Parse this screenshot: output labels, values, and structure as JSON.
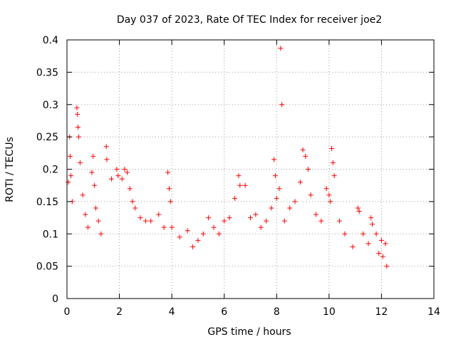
{
  "chart_data": {
    "type": "scatter",
    "title": "Day 037 of 2023, Rate Of TEC Index for receiver joe2",
    "xlabel": "GPS time / hours",
    "ylabel": "ROTI / TECUs",
    "xlim": [
      0,
      14
    ],
    "ylim": [
      0,
      0.4
    ],
    "x_ticks": [
      0,
      2,
      4,
      6,
      8,
      10,
      12,
      14
    ],
    "y_ticks": [
      0,
      0.05,
      0.1,
      0.15,
      0.2,
      0.25,
      0.3,
      0.35,
      0.4
    ],
    "grid": true,
    "marker": "+",
    "color": "#ff0000",
    "series": [
      {
        "name": "ROTI",
        "points": [
          [
            0.05,
            0.18
          ],
          [
            0.1,
            0.25
          ],
          [
            0.12,
            0.22
          ],
          [
            0.15,
            0.19
          ],
          [
            0.2,
            0.15
          ],
          [
            0.38,
            0.295
          ],
          [
            0.4,
            0.285
          ],
          [
            0.42,
            0.265
          ],
          [
            0.45,
            0.25
          ],
          [
            0.5,
            0.21
          ],
          [
            0.6,
            0.16
          ],
          [
            0.7,
            0.13
          ],
          [
            0.8,
            0.11
          ],
          [
            0.95,
            0.195
          ],
          [
            1.0,
            0.22
          ],
          [
            1.05,
            0.175
          ],
          [
            1.1,
            0.14
          ],
          [
            1.2,
            0.12
          ],
          [
            1.3,
            0.1
          ],
          [
            1.5,
            0.235
          ],
          [
            1.52,
            0.215
          ],
          [
            1.7,
            0.185
          ],
          [
            1.9,
            0.2
          ],
          [
            1.95,
            0.19
          ],
          [
            2.1,
            0.185
          ],
          [
            2.2,
            0.2
          ],
          [
            2.3,
            0.195
          ],
          [
            2.4,
            0.17
          ],
          [
            2.5,
            0.15
          ],
          [
            2.6,
            0.14
          ],
          [
            2.8,
            0.125
          ],
          [
            3.0,
            0.12
          ],
          [
            3.2,
            0.12
          ],
          [
            3.5,
            0.13
          ],
          [
            3.7,
            0.11
          ],
          [
            3.85,
            0.195
          ],
          [
            3.9,
            0.17
          ],
          [
            3.95,
            0.15
          ],
          [
            4.0,
            0.11
          ],
          [
            4.3,
            0.095
          ],
          [
            4.6,
            0.105
          ],
          [
            4.8,
            0.08
          ],
          [
            5.0,
            0.09
          ],
          [
            5.2,
            0.1
          ],
          [
            5.4,
            0.125
          ],
          [
            5.6,
            0.11
          ],
          [
            5.8,
            0.1
          ],
          [
            6.0,
            0.12
          ],
          [
            6.2,
            0.125
          ],
          [
            6.4,
            0.155
          ],
          [
            6.55,
            0.19
          ],
          [
            6.6,
            0.175
          ],
          [
            6.8,
            0.175
          ],
          [
            7.0,
            0.125
          ],
          [
            7.2,
            0.13
          ],
          [
            7.4,
            0.11
          ],
          [
            7.6,
            0.12
          ],
          [
            7.8,
            0.14
          ],
          [
            7.9,
            0.215
          ],
          [
            7.95,
            0.19
          ],
          [
            8.0,
            0.155
          ],
          [
            8.1,
            0.17
          ],
          [
            8.15,
            0.387
          ],
          [
            8.2,
            0.3
          ],
          [
            8.3,
            0.12
          ],
          [
            8.5,
            0.14
          ],
          [
            8.7,
            0.15
          ],
          [
            8.9,
            0.18
          ],
          [
            9.0,
            0.23
          ],
          [
            9.1,
            0.22
          ],
          [
            9.2,
            0.2
          ],
          [
            9.3,
            0.16
          ],
          [
            9.5,
            0.13
          ],
          [
            9.7,
            0.12
          ],
          [
            9.9,
            0.17
          ],
          [
            10.0,
            0.16
          ],
          [
            10.05,
            0.15
          ],
          [
            10.1,
            0.232
          ],
          [
            10.15,
            0.21
          ],
          [
            10.2,
            0.19
          ],
          [
            10.4,
            0.12
          ],
          [
            10.6,
            0.1
          ],
          [
            10.9,
            0.08
          ],
          [
            11.1,
            0.14
          ],
          [
            11.15,
            0.135
          ],
          [
            11.3,
            0.1
          ],
          [
            11.5,
            0.085
          ],
          [
            11.6,
            0.125
          ],
          [
            11.65,
            0.115
          ],
          [
            11.8,
            0.1
          ],
          [
            11.9,
            0.07
          ],
          [
            12.0,
            0.09
          ],
          [
            12.05,
            0.065
          ],
          [
            12.15,
            0.085
          ],
          [
            12.2,
            0.05
          ]
        ]
      }
    ]
  }
}
